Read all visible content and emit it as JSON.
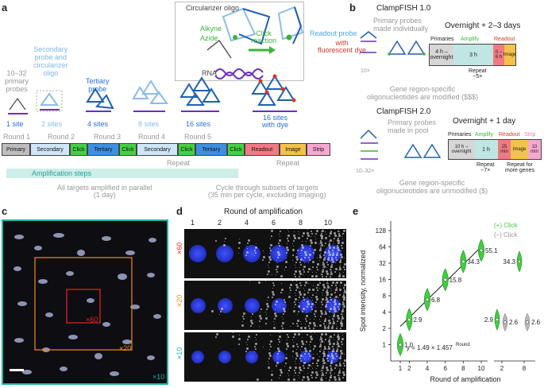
{
  "panel_a": {
    "letter": "a",
    "circularizer_label": "Circularizer oligo",
    "alkyne_label": "Alkyne",
    "azide_label": "Azide",
    "click_reaction_label": "Click\nreaction",
    "rna_label": "RNA",
    "readout_probe_label": "Readout probe",
    "with_dye_label": "with\nfluorescent dye",
    "primary_probes_label": "10–32\nprimary\nprobes",
    "secondary_probe_label": "Secondary\nprobe and\ncircularizer\noligo",
    "tertiary_probe_label": "Tertiary\nprobe",
    "sites": [
      "1 site",
      "2 sites",
      "4 sites",
      "8 sites",
      "16 sites",
      "16 sites\nwith dye"
    ],
    "rounds": [
      "Round 1",
      "Round 2",
      "Round 3",
      "Round 4",
      "Round 5"
    ],
    "steps": [
      "Primary",
      "Secondary",
      "Click",
      "Tertiary",
      "Click",
      "Secondary",
      "Click",
      "Tertiary",
      "Click",
      "Readout",
      "Image",
      "Strip"
    ],
    "repeat_label": "Repeat",
    "repeat_label_2": "Repeat",
    "amplification_steps_label": "Amplification steps",
    "parallel_label": "All targets amplified in parallel\n(1 day)",
    "cycle_label": "Cycle through subsets of targets\n(35 min per cycle, excluding imaging)"
  },
  "panel_b": {
    "letter": "b",
    "clampfish1_title": "ClampFISH 1.0",
    "clampfish1_primary_note": "Primary probes\nmade individually",
    "clampfish1_overnight": "Overnight + 2–3 days",
    "clampfish1_cols": [
      "Primaries",
      "Amplify",
      "Readout"
    ],
    "clampfish1_boxes": [
      "4 h –\novernight",
      "3 h",
      "0 –\n6 h",
      "Image"
    ],
    "clampfish1_repeat": "Repeat\n~5×",
    "clampfish1_count": "10×",
    "clampfish1_mod_note": "Gene region-specific\noligonucleotides are modified ($$$)",
    "clampfish2_title": "ClampFISH 2.0",
    "clampfish2_primary_note": "Primary probes\nmade in pool",
    "clampfish2_overnight": "Overnight + 1 day",
    "clampfish2_cols": [
      "Primaries",
      "Amplify",
      "Readout",
      "Strip"
    ],
    "clampfish2_boxes": [
      "10 h –\novernight",
      "1 h",
      "25\nmin",
      "Image",
      "10\nmin"
    ],
    "clampfish2_repeat": "Repeat\n~7×",
    "clampfish2_repeat_genes": "Repeat for\nmore genes",
    "clampfish2_count": "10–32×",
    "clampfish2_mod_note": "Gene region-specific\noligonucleotides are unmodified ($)"
  },
  "panel_c": {
    "letter": "c",
    "zoom_labels": [
      "×60",
      "×20",
      "×10"
    ],
    "colors": {
      "x60": "#e8261f",
      "x20": "#f08a1e",
      "x10": "#20b3a6"
    }
  },
  "panel_d": {
    "letter": "d",
    "title": "Round of amplification",
    "columns": [
      "1",
      "2",
      "4",
      "6",
      "8",
      "10"
    ],
    "row_labels": [
      "×60",
      "×20",
      "×10"
    ]
  },
  "panel_e": {
    "letter": "e",
    "legend": [
      "(+) Click",
      "(–) Click"
    ],
    "fit_label": "y = 1.49 × 1.457",
    "fit_sup": "Round",
    "colors": {
      "plus": "#3fcf3f",
      "minus": "#b8b8b8",
      "fit": "#000000"
    }
  },
  "chart_data": {
    "type": "scatter",
    "xlabel": "Round of amplification",
    "ylabel": "Spot intensity, normalized",
    "yscale": "log2",
    "ylim": [
      0.5,
      192
    ],
    "yticks": [
      1,
      2,
      4,
      8,
      16,
      32,
      64,
      128
    ],
    "series": [
      {
        "name": "(+) Click",
        "x": [
          1,
          2,
          4,
          6,
          8,
          10
        ],
        "y": [
          1.0,
          2.9,
          6.8,
          15.8,
          34.3,
          55.1
        ],
        "labels": [
          "1.0",
          "2.9",
          "6.8",
          "15.8",
          "34.3",
          "55.1"
        ]
      },
      {
        "name": "(+) Click",
        "x": [
          2,
          8
        ],
        "y": [
          2.9,
          34.3
        ],
        "labels": [
          "2.9",
          "34.3"
        ]
      },
      {
        "name": "(–) Click",
        "x": [
          2,
          8
        ],
        "y": [
          2.6,
          2.6
        ],
        "labels": [
          "2.6",
          "2.6"
        ]
      }
    ],
    "xticks_left": [
      "1",
      "2",
      "4",
      "6",
      "8",
      "10"
    ],
    "xticks_right": [
      "2",
      "8"
    ]
  }
}
